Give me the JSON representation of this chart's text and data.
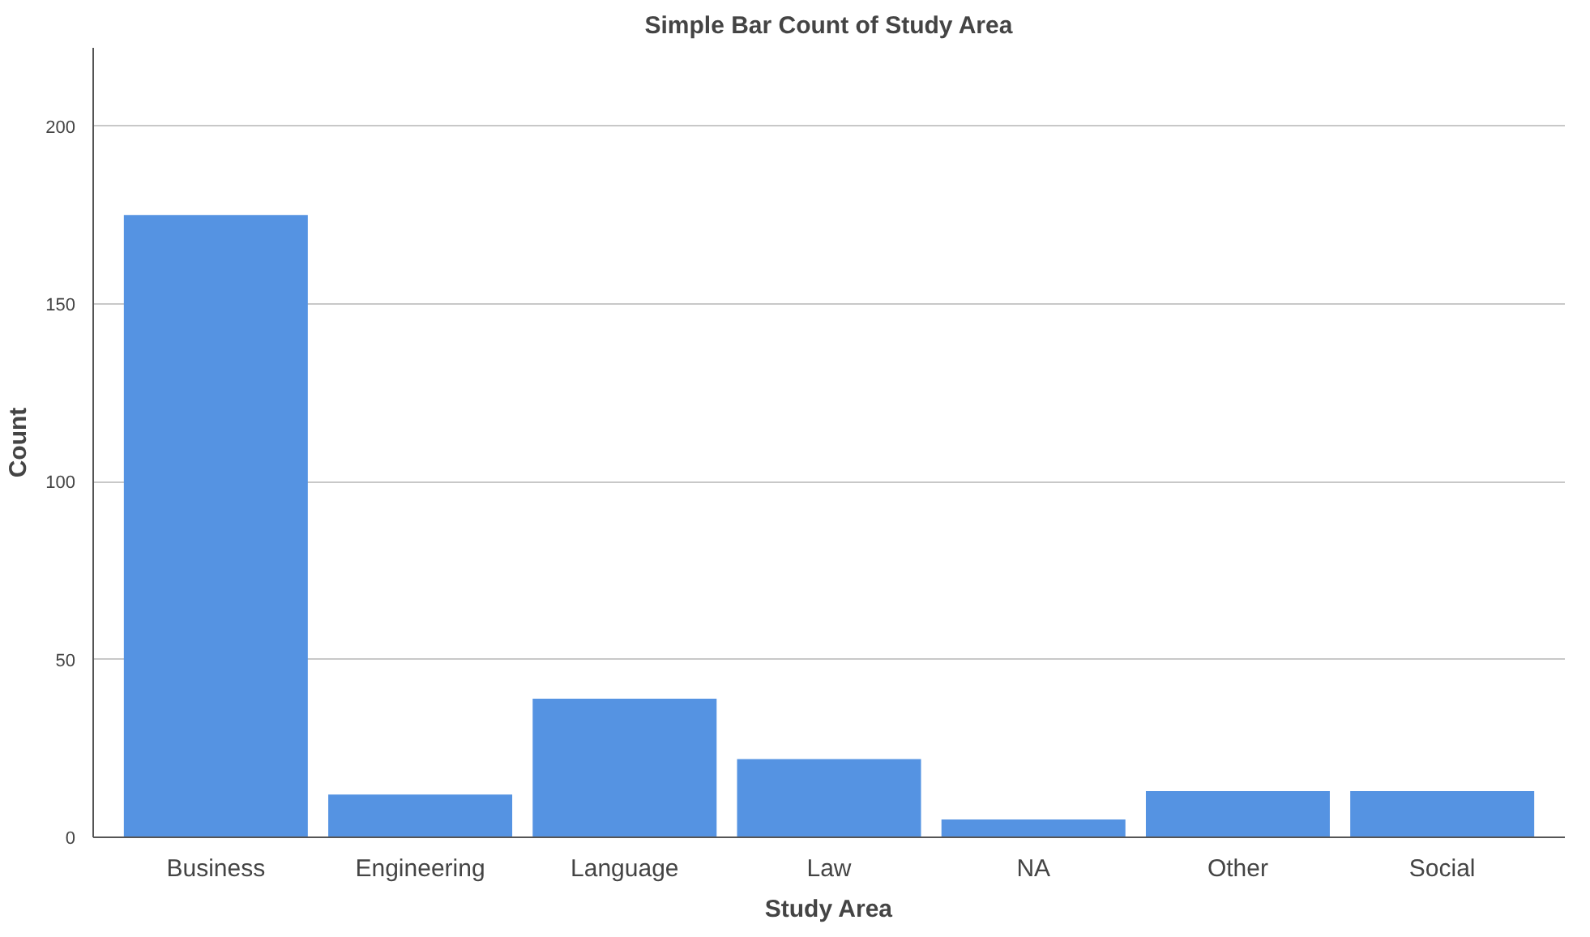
{
  "chart_data": {
    "type": "bar",
    "title": "Simple Bar Count of Study Area",
    "xlabel": "Study Area",
    "ylabel": "Count",
    "categories": [
      "Business",
      "Engineering",
      "Language",
      "Law",
      "NA",
      "Other",
      "Social"
    ],
    "values": [
      175,
      12,
      39,
      22,
      5,
      13,
      13
    ],
    "color": "#5593e2",
    "ylim": [
      0,
      222
    ],
    "yticks": [
      0,
      50,
      100,
      150,
      200
    ],
    "grid": "y"
  }
}
